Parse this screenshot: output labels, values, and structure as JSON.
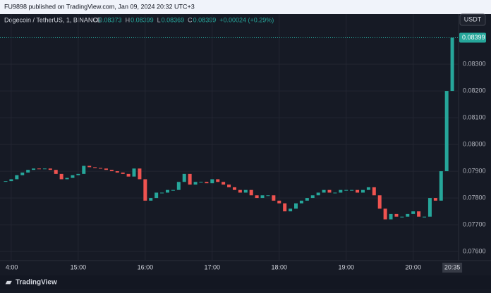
{
  "header": {
    "published": "FU9898 published on TradingView.com, Jan 09, 2024 20:32 UTC+3"
  },
  "chart_data": {
    "type": "candlestick",
    "symbol": "Dogecoin / TetherUS, 1, BINANCE",
    "legend": [
      {
        "label": "O",
        "value": 0.08373
      },
      {
        "label": "H",
        "value": 0.08399
      },
      {
        "label": "L",
        "value": 0.08369
      },
      {
        "label": "C",
        "value": 0.08399
      }
    ],
    "change": "+0.00024 (+0.29%)",
    "currency": "USDT",
    "up_color": "#26a69a",
    "down_color": "#ef5350",
    "x": [
      "13:55",
      "14:00",
      "14:05",
      "14:10",
      "14:15",
      "14:20",
      "14:25",
      "14:30",
      "14:35",
      "14:40",
      "14:45",
      "14:50",
      "14:55",
      "15:00",
      "15:05",
      "15:10",
      "15:15",
      "15:20",
      "15:25",
      "15:30",
      "15:35",
      "15:40",
      "15:45",
      "15:50",
      "15:55",
      "16:00",
      "16:05",
      "16:10",
      "16:15",
      "16:20",
      "16:25",
      "16:30",
      "16:35",
      "16:40",
      "16:45",
      "16:50",
      "16:55",
      "17:00",
      "17:05",
      "17:10",
      "17:15",
      "17:20",
      "17:25",
      "17:30",
      "17:35",
      "17:40",
      "17:45",
      "17:50",
      "17:55",
      "18:00",
      "18:05",
      "18:10",
      "18:15",
      "18:20",
      "18:25",
      "18:30",
      "18:35",
      "18:40",
      "18:45",
      "18:50",
      "18:55",
      "19:00",
      "19:05",
      "19:10",
      "19:15",
      "19:20",
      "19:25",
      "19:30",
      "19:35",
      "19:40",
      "19:45",
      "19:50",
      "19:55",
      "20:00",
      "20:05",
      "20:10",
      "20:15",
      "20:20",
      "20:25",
      "20:30",
      "20:35"
    ],
    "values": [
      0.07863,
      0.0787,
      0.07885,
      0.07895,
      0.07905,
      0.0791,
      0.07908,
      0.0791,
      0.07905,
      0.0789,
      0.0787,
      0.07875,
      0.07885,
      0.0789,
      0.0792,
      0.07915,
      0.07912,
      0.0791,
      0.07905,
      0.079,
      0.07895,
      0.0789,
      0.0788,
      0.0791,
      0.0787,
      0.0779,
      0.078,
      0.0782,
      0.0782,
      0.0783,
      0.0783,
      0.0786,
      0.0789,
      0.0785,
      0.0786,
      0.0786,
      0.07855,
      0.0787,
      0.0786,
      0.0785,
      0.0784,
      0.0783,
      0.0782,
      0.0783,
      0.0781,
      0.078,
      0.0781,
      0.0781,
      0.0779,
      0.0778,
      0.0775,
      0.0776,
      0.0778,
      0.0779,
      0.078,
      0.0781,
      0.0782,
      0.0783,
      0.0782,
      0.0782,
      0.0783,
      0.0783,
      0.0783,
      0.0782,
      0.0783,
      0.0784,
      0.0781,
      0.0776,
      0.0772,
      0.0774,
      0.0773,
      0.0773,
      0.0774,
      0.0775,
      0.0773,
      0.0773,
      0.078,
      0.0779,
      0.079,
      0.082,
      0.08399
    ],
    "xlim": [
      "13:55",
      "20:40"
    ],
    "xticks": [
      {
        "value": "14:00",
        "label": "4:00"
      },
      "15:00",
      "16:00",
      "17:00",
      "18:00",
      "19:00",
      "20:00"
    ],
    "x_cursor": "20:35",
    "ylim": [
      0.07566,
      0.08487
    ],
    "yticks": [
      {
        "value": 0.076,
        "label": "0.07600"
      },
      {
        "value": 0.077,
        "label": "0.07700"
      },
      {
        "value": 0.078,
        "label": "0.07800"
      },
      {
        "value": 0.079,
        "label": "0.07900"
      },
      {
        "value": 0.08,
        "label": "0.08000"
      },
      {
        "value": 0.081,
        "label": "0.08100"
      },
      {
        "value": 0.082,
        "label": "0.08200"
      },
      {
        "value": 0.083,
        "label": "0.08300"
      }
    ],
    "last_price": {
      "value": 0.08399,
      "label": "0.08399"
    },
    "grid": true
  },
  "footer": {
    "brand": "TradingView"
  }
}
